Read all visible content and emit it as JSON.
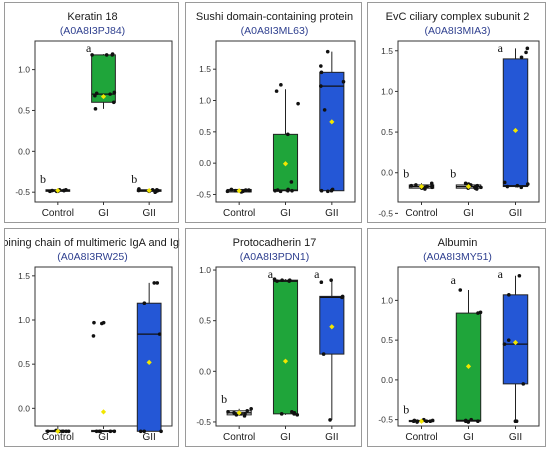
{
  "colors": {
    "GI": "#1fa53a",
    "GII": "#2457d6",
    "mean": "#f2e600",
    "point": "#111111",
    "frame": "#333333"
  },
  "chart_data": [
    {
      "type": "box",
      "title": "Keratin 18",
      "accession": "(A0A8I3PJ84)",
      "categories": [
        "Control",
        "GI",
        "GII"
      ],
      "yticks": [
        "-0.5",
        "0.0",
        "0.5",
        "1.0"
      ],
      "ylim": [
        -0.62,
        1.35
      ],
      "boxes": [
        {
          "q1": -0.49,
          "median": -0.48,
          "q3": -0.47,
          "lo": -0.49,
          "hi": -0.46,
          "mean": -0.48,
          "fill": "#ffffff",
          "letter": "b",
          "points": [
            -0.49,
            -0.48,
            -0.47,
            -0.49,
            -0.48,
            -0.47,
            -0.48,
            -0.49
          ]
        },
        {
          "q1": 0.6,
          "median": 0.7,
          "q3": 1.18,
          "lo": 0.52,
          "hi": 1.19,
          "mean": 0.67,
          "fill": "#1fa53a",
          "letter": "a",
          "points": [
            1.19,
            1.18,
            1.18,
            1.18,
            0.72,
            0.71,
            0.7,
            0.68,
            0.6,
            0.52
          ]
        },
        {
          "q1": -0.49,
          "median": -0.48,
          "q3": -0.47,
          "lo": -0.49,
          "hi": -0.46,
          "mean": -0.48,
          "fill": "#ffffff",
          "letter": "b",
          "points": [
            -0.49,
            -0.48,
            -0.47,
            -0.48,
            -0.49,
            -0.47,
            -0.5,
            -0.46
          ]
        }
      ]
    },
    {
      "type": "box",
      "title": "Sushi domain-containing  protein",
      "accession": "(A0A8I3ML63)",
      "categories": [
        "Control",
        "GI",
        "GII"
      ],
      "yticks": [
        "-0.5",
        "0.0",
        "0.5",
        "1.0",
        "1.5"
      ],
      "ylim": [
        -0.62,
        1.95
      ],
      "boxes": [
        {
          "q1": -0.46,
          "median": -0.44,
          "q3": -0.42,
          "lo": -0.47,
          "hi": -0.41,
          "mean": -0.44,
          "fill": "#ffffff",
          "letter": "",
          "points": [
            -0.46,
            -0.45,
            -0.44,
            -0.43,
            -0.42,
            -0.44,
            -0.45,
            -0.43
          ]
        },
        {
          "q1": -0.44,
          "median": -0.43,
          "q3": 0.46,
          "lo": -0.45,
          "hi": 1.18,
          "mean": -0.01,
          "fill": "#1fa53a",
          "letter": "",
          "points": [
            1.25,
            1.15,
            0.95,
            0.46,
            -0.3,
            -0.42,
            -0.44,
            -0.44,
            -0.45,
            -0.43,
            -0.44
          ]
        },
        {
          "q1": -0.44,
          "median": 1.23,
          "q3": 1.45,
          "lo": -0.45,
          "hi": 1.78,
          "mean": 0.66,
          "fill": "#2457d6",
          "letter": "",
          "points": [
            1.78,
            1.55,
            1.45,
            1.3,
            1.23,
            0.85,
            -0.42,
            -0.44,
            -0.45,
            -0.44
          ]
        }
      ]
    },
    {
      "type": "box",
      "title": "EvC ciliary complex subunit 2",
      "accession": "(A0A8I3MIA3)",
      "categories": [
        "Control",
        "GI",
        "GII"
      ],
      "yticks": [
        "-0.5",
        "0.0",
        "0.5",
        "1.0",
        "1.5"
      ],
      "ylim": [
        -0.36,
        1.62
      ],
      "boxes": [
        {
          "q1": -0.19,
          "median": -0.17,
          "q3": -0.15,
          "lo": -0.2,
          "hi": -0.13,
          "mean": -0.17,
          "fill": "#ffffff",
          "letter": "b",
          "points": [
            -0.2,
            -0.19,
            -0.18,
            -0.17,
            -0.16,
            -0.15,
            -0.13,
            -0.18,
            -0.16
          ]
        },
        {
          "q1": -0.19,
          "median": -0.17,
          "q3": -0.15,
          "lo": -0.2,
          "hi": -0.13,
          "mean": -0.17,
          "fill": "#ffffff",
          "letter": "b",
          "points": [
            -0.2,
            -0.19,
            -0.18,
            -0.17,
            -0.16,
            -0.15,
            -0.13,
            -0.14,
            -0.19,
            -0.18
          ]
        },
        {
          "q1": -0.17,
          "median": -0.16,
          "q3": 1.4,
          "lo": -0.18,
          "hi": 1.53,
          "mean": 0.52,
          "fill": "#2457d6",
          "letter": "a",
          "points": [
            1.53,
            1.48,
            1.42,
            -0.12,
            -0.14,
            -0.16,
            -0.17,
            -0.18
          ]
        }
      ]
    },
    {
      "type": "box",
      "title": "Joining chain of multimeric IgA and IgM",
      "accession": "(A0A8I3RW25)",
      "categories": [
        "Control",
        "GI",
        "GII"
      ],
      "yticks": [
        "0.0",
        "0.5",
        "1.0",
        "1.5"
      ],
      "ylim": [
        -0.2,
        1.6
      ],
      "boxes": [
        {
          "q1": -0.26,
          "median": -0.26,
          "q3": -0.25,
          "lo": -0.26,
          "hi": -0.25,
          "mean": -0.26,
          "fill": "#ffffff",
          "letter": "",
          "points": [
            -0.26,
            -0.26,
            -0.26,
            -0.26,
            -0.25,
            -0.26,
            -0.26,
            -0.26
          ]
        },
        {
          "q1": -0.26,
          "median": -0.26,
          "q3": -0.25,
          "lo": -0.26,
          "hi": -0.25,
          "mean": -0.04,
          "fill": "#ffffff",
          "letter": "",
          "points": [
            0.97,
            0.97,
            0.96,
            0.82,
            -0.26,
            -0.26,
            -0.26,
            -0.26,
            -0.26
          ]
        },
        {
          "q1": -0.26,
          "median": 0.84,
          "q3": 1.19,
          "lo": -0.26,
          "hi": 1.42,
          "mean": 0.52,
          "fill": "#2457d6",
          "letter": "",
          "points": [
            1.42,
            1.42,
            1.19,
            0.84,
            -0.26,
            -0.26,
            -0.26
          ]
        }
      ]
    },
    {
      "type": "box",
      "title": "Protocadherin 17",
      "accession": "(A0A8I3PDN1)",
      "categories": [
        "Control",
        "GI",
        "GII"
      ],
      "yticks": [
        "-0.5",
        "0.0",
        "0.5",
        "1.0"
      ],
      "ylim": [
        -0.54,
        1.03
      ],
      "boxes": [
        {
          "q1": -0.43,
          "median": -0.41,
          "q3": -0.39,
          "lo": -0.44,
          "hi": -0.37,
          "mean": -0.41,
          "fill": "#ffffff",
          "letter": "b",
          "points": [
            -0.44,
            -0.43,
            -0.42,
            -0.41,
            -0.4,
            -0.39,
            -0.37,
            -0.42
          ]
        },
        {
          "q1": -0.42,
          "median": 0.89,
          "q3": 0.9,
          "lo": -0.43,
          "hi": 0.91,
          "mean": 0.1,
          "fill": "#1fa53a",
          "letter": "a",
          "points": [
            0.91,
            0.9,
            0.9,
            0.89,
            0.89,
            -0.4,
            -0.41,
            -0.42,
            -0.42,
            -0.43
          ]
        },
        {
          "q1": 0.17,
          "median": 0.73,
          "q3": 0.74,
          "lo": -0.48,
          "hi": 0.9,
          "mean": 0.44,
          "fill": "#2457d6",
          "letter": "a",
          "points": [
            0.9,
            0.88,
            0.74,
            0.73,
            0.17,
            -0.48
          ]
        }
      ]
    },
    {
      "type": "box",
      "title": "Albumin",
      "accession": "(A0A8I3MY51)",
      "categories": [
        "Control",
        "GI",
        "GII"
      ],
      "yticks": [
        "-0.5",
        "0.0",
        "0.5",
        "1.0"
      ],
      "ylim": [
        -0.58,
        1.42
      ],
      "boxes": [
        {
          "q1": -0.52,
          "median": -0.52,
          "q3": -0.51,
          "lo": -0.53,
          "hi": -0.5,
          "mean": -0.52,
          "fill": "#ffffff",
          "letter": "b",
          "points": [
            -0.53,
            -0.52,
            -0.52,
            -0.52,
            -0.51,
            -0.51,
            -0.52,
            -0.5
          ]
        },
        {
          "q1": -0.52,
          "median": -0.51,
          "q3": 0.84,
          "lo": -0.53,
          "hi": 1.13,
          "mean": 0.17,
          "fill": "#1fa53a",
          "letter": "a",
          "points": [
            1.13,
            0.85,
            0.84,
            -0.5,
            -0.51,
            -0.52,
            -0.52,
            -0.53
          ]
        },
        {
          "q1": -0.05,
          "median": 0.45,
          "q3": 1.07,
          "lo": -0.52,
          "hi": 1.31,
          "mean": 0.47,
          "fill": "#2457d6",
          "letter": "a",
          "points": [
            1.31,
            1.07,
            0.5,
            0.45,
            -0.05,
            -0.52,
            -0.52
          ]
        }
      ]
    }
  ]
}
